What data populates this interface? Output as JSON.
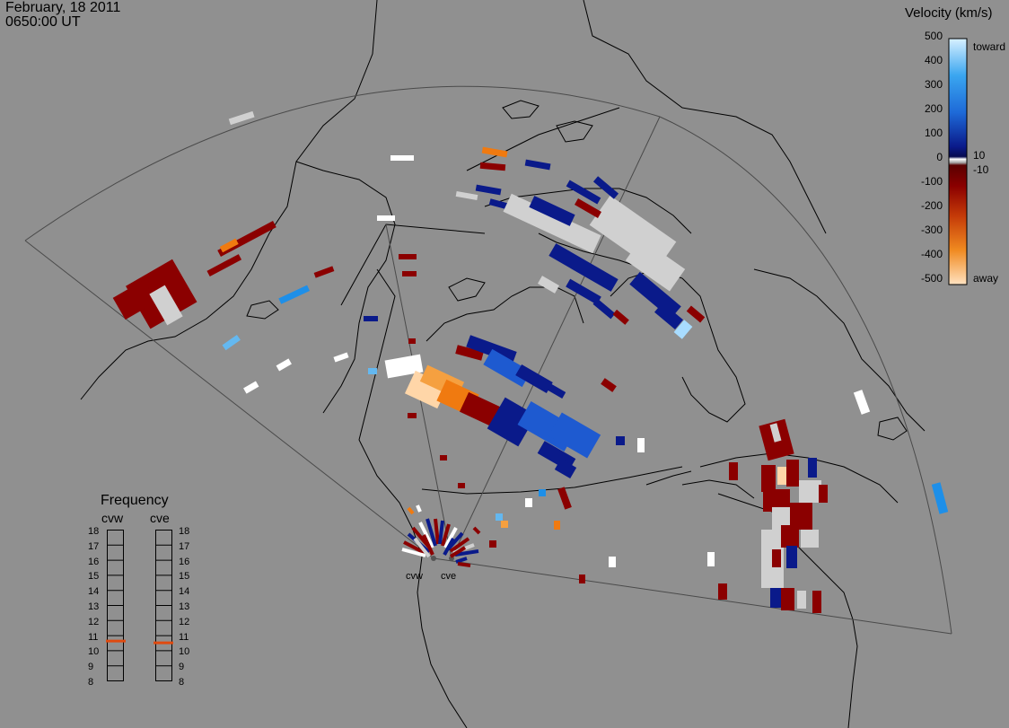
{
  "header": {
    "date": "February, 18 2011",
    "time": "0650:00 UT"
  },
  "velocity_scale": {
    "title": "Velocity (km/s)",
    "ticks": [
      "500",
      "400",
      "300",
      "200",
      "100",
      "0",
      "-100",
      "-200",
      "-300",
      "-400",
      "-500"
    ],
    "near_zero_labels": [
      "10",
      "-10"
    ],
    "toward_label": "toward",
    "away_label": "away",
    "colors": {
      "toward_light": "#cfeaff",
      "toward_mid": "#1e8fe8",
      "toward_dark": "#0a1a8a",
      "away_dark": "#8b0000",
      "away_mid": "#f07a10",
      "away_light": "#ffd6a8",
      "ground_scatter": "#d0d0d0"
    }
  },
  "frequency_panel": {
    "title": "Frequency",
    "radars": [
      "cvw",
      "cve"
    ],
    "ticks": [
      "18",
      "17",
      "16",
      "15",
      "14",
      "13",
      "12",
      "11",
      "10",
      "9",
      "8"
    ],
    "current_mhz": {
      "cvw": 11,
      "cve": 11
    },
    "marker_color": "#e04a10"
  },
  "radar_sites": {
    "west": "cvw",
    "east": "cve"
  }
}
